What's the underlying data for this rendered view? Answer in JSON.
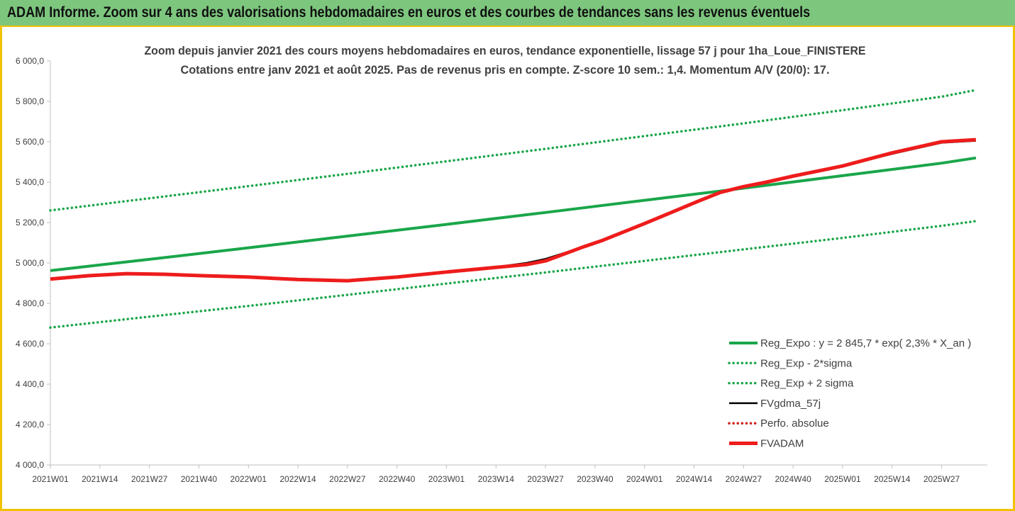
{
  "banner": {
    "title": "ADAM Informe. Zoom sur 4 ans des valorisations hebdomadaires en euros et des courbes de tendances sans les revenus éventuels"
  },
  "colors": {
    "banner_bg": "#7dc67e",
    "frame": "#f2c200",
    "trend_green": "#1aa64a",
    "band_green": "#1aa64a",
    "fv_black": "#000000",
    "fv_adam_red": "#ee1c1c",
    "perfo_red": "#d21d1d"
  },
  "chart_data": {
    "type": "line",
    "title": "Zoom depuis janvier 2021 des cours moyens hebdomadaires en euros, tendance exponentielle, lissage 57 j pour 1ha_Loue_FINISTERE",
    "subtitle": "Cotations entre janv 2021 et août 2025. Pas de revenus pris en compte. Z-score 10 sem.: 1,4. Momentum A/V (20/0): 17.",
    "xlabel": "",
    "ylabel": "",
    "ylim": [
      4000,
      6000
    ],
    "yticks": [
      "4 000,0",
      "4 200,0",
      "4 400,0",
      "4 600,0",
      "4 800,0",
      "5 000,0",
      "5 200,0",
      "5 400,0",
      "5 600,0",
      "5 800,0",
      "6 000,0"
    ],
    "x_tick_labels": [
      "2021W01",
      "2021W14",
      "2021W27",
      "2021W40",
      "2022W01",
      "2022W14",
      "2022W27",
      "2022W40",
      "2023W01",
      "2023W14",
      "2023W27",
      "2023W40",
      "2024W01",
      "2024W14",
      "2024W27",
      "2024W40",
      "2025W01",
      "2025W14",
      "2025W27"
    ],
    "x_tick_index": [
      0,
      13,
      26,
      39,
      52,
      65,
      78,
      91,
      104,
      117,
      130,
      143,
      156,
      169,
      182,
      195,
      208,
      221,
      234
    ],
    "x_range": [
      0,
      246
    ],
    "grid": false,
    "legend_position": "bottom-right",
    "series": [
      {
        "name": "Reg_Expo : y = 2 845,7 * exp( 2,3% *  X_an )",
        "style": "solid-thick",
        "color": "#1aa64a",
        "x": [
          0,
          26,
          52,
          78,
          104,
          130,
          156,
          182,
          208,
          234,
          243
        ],
        "y": [
          4962,
          5018,
          5075,
          5133,
          5191,
          5250,
          5310,
          5370,
          5432,
          5494,
          5520
        ]
      },
      {
        "name": "Reg_Exp - 2*sigma",
        "style": "dotted",
        "color": "#1aa64a",
        "x": [
          0,
          26,
          52,
          78,
          104,
          130,
          156,
          182,
          208,
          234,
          243
        ],
        "y": [
          4680,
          4734,
          4787,
          4842,
          4898,
          4953,
          5010,
          5067,
          5124,
          5184,
          5207
        ]
      },
      {
        "name": "Reg_Exp + 2 sigma",
        "style": "dotted",
        "color": "#1aa64a",
        "x": [
          0,
          26,
          52,
          78,
          104,
          130,
          156,
          182,
          208,
          234,
          243
        ],
        "y": [
          5260,
          5320,
          5380,
          5441,
          5503,
          5565,
          5628,
          5691,
          5756,
          5823,
          5856
        ]
      },
      {
        "name": "FVgdma_57j",
        "style": "solid",
        "color": "#000000",
        "x": [
          0,
          10,
          20,
          30,
          40,
          52,
          65,
          78,
          91,
          104,
          117,
          125,
          130,
          135,
          140,
          145,
          150,
          156,
          163,
          170,
          176,
          182,
          188,
          195,
          208,
          221,
          234,
          243
        ],
        "y": [
          4922,
          4938,
          4946,
          4945,
          4938,
          4930,
          4922,
          4915,
          4930,
          4955,
          4980,
          5000,
          5020,
          5050,
          5080,
          5110,
          5150,
          5195,
          5250,
          5305,
          5350,
          5380,
          5400,
          5430,
          5480,
          5540,
          5595,
          5605
        ]
      },
      {
        "name": "Perfo. absolue",
        "style": "dotted",
        "color": "#d21d1d",
        "x": [],
        "y": []
      },
      {
        "name": "FVADAM",
        "style": "solid-thick",
        "color": "#ee1c1c",
        "x": [
          0,
          10,
          20,
          30,
          40,
          52,
          65,
          78,
          91,
          104,
          117,
          125,
          130,
          135,
          140,
          145,
          150,
          156,
          163,
          170,
          176,
          182,
          188,
          195,
          208,
          221,
          234,
          243
        ],
        "y": [
          4920,
          4937,
          4947,
          4944,
          4937,
          4930,
          4918,
          4912,
          4930,
          4955,
          4978,
          4992,
          5010,
          5045,
          5080,
          5112,
          5150,
          5195,
          5250,
          5305,
          5350,
          5378,
          5400,
          5430,
          5480,
          5545,
          5600,
          5610
        ]
      }
    ]
  }
}
